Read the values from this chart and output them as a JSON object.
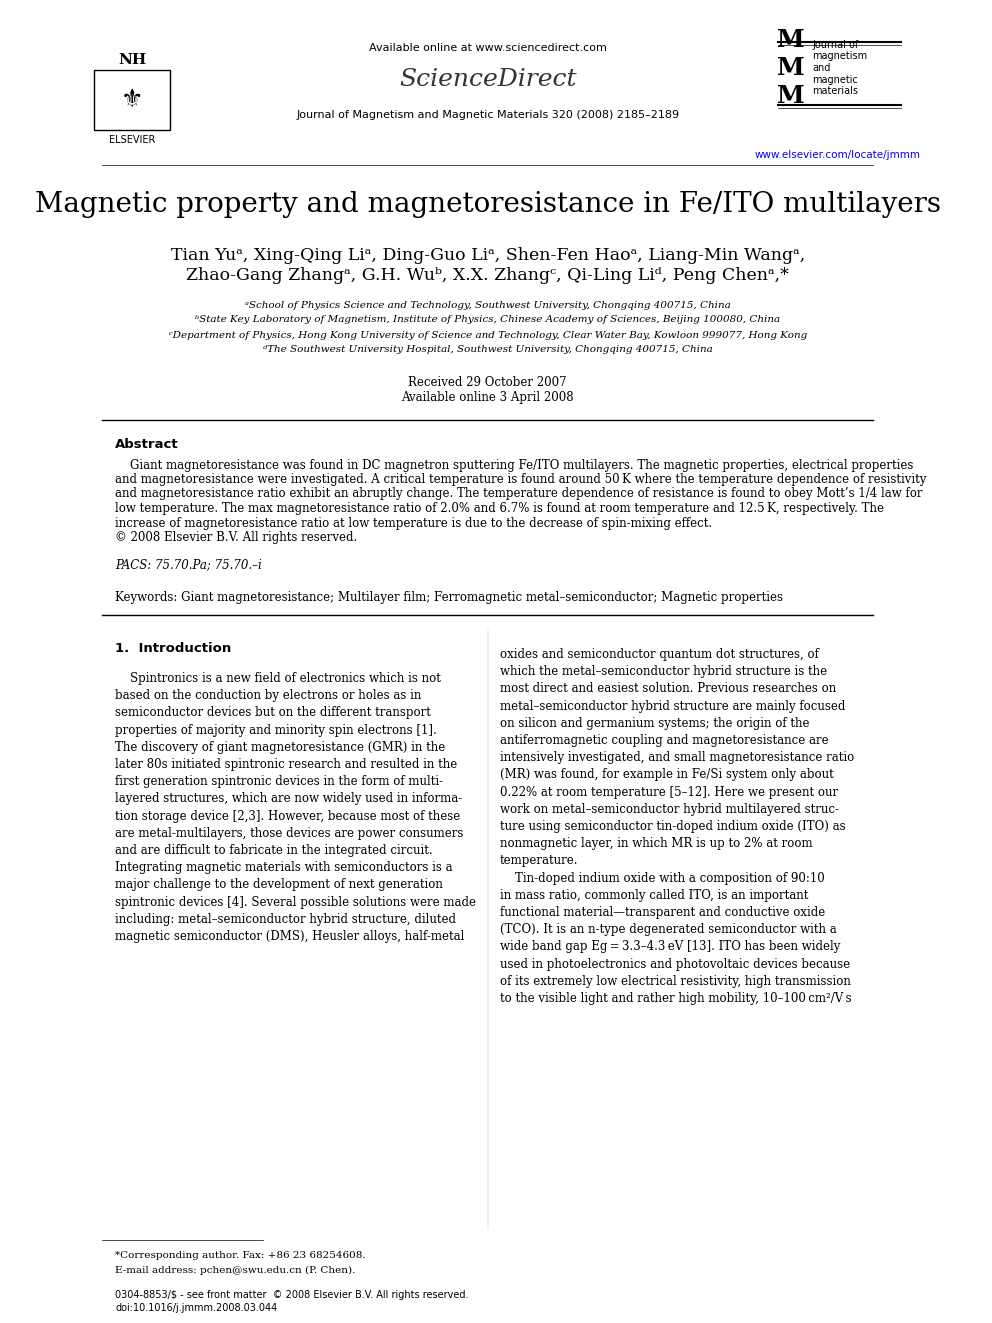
{
  "title": "Magnetic property and magnetoresistance in Fe/ITO multilayers",
  "authors_line1": "Tian Yuᵃ, Xing-Qing Liᵃ, Ding-Guo Liᵃ, Shen-Fen Haoᵃ, Liang-Min Wangᵃ,",
  "authors_line2": "Zhao-Gang Zhangᵃ, G.H. Wuᵇ, X.X. Zhangᶜ, Qi-Ling Liᵈ, Peng Chenᵃ,*",
  "affiliation_a": "ᵃSchool of Physics Science and Technology, Southwest University, Chongqing 400715, China",
  "affiliation_b": "ᵇState Key Laboratory of Magnetism, Institute of Physics, Chinese Academy of Sciences, Beijing 100080, China",
  "affiliation_c": "ᶜDepartment of Physics, Hong Kong University of Science and Technology, Clear Water Bay, Kowloon 999077, Hong Kong",
  "affiliation_d": "ᵈThe Southwest University Hospital, Southwest University, Chongqing 400715, China",
  "received": "Received 29 October 2007",
  "available": "Available online 3 April 2008",
  "journal_header": "Journal of Magnetism and Magnetic Materials 320 (2008) 2185–2189",
  "available_online": "Available online at www.sciencedirect.com",
  "website": "www.elsevier.com/locate/jmmm",
  "abstract_title": "Abstract",
  "abstract_text": "Giant magnetoresistance was found in DC magnetron sputtering Fe/ITO multilayers. The magnetic properties, electrical properties and magnetoresistance were investigated. A critical temperature is found around 50 K where the temperature dependence of resistivity and magnetoresistance ratio exhibit an abruptly change. The temperature dependence of resistance is found to obey Mott’s 1/4 law for low temperature. The max magnetoresistance ratio of 2.0% and 6.7% is found at room temperature and 12.5 K, respectively. The increase of magnetoresistance ratio at low temperature is due to the decrease of spin-mixing effect.\n© 2008 Elsevier B.V. All rights reserved.",
  "pacs": "PACS: 75.70.Pa; 75.70.–i",
  "keywords": "Keywords: Giant magnetoresistance; Multilayer film; Ferromagnetic metal–semiconductor; Magnetic properties",
  "section1_title": "1.  Introduction",
  "intro_col1": "    Spintronics is a new field of electronics which is not based on the conduction by electrons or holes as in semiconductor devices but on the different transport properties of majority and minority spin electrons [1]. The discovery of giant magnetoresistance (GMR) in the later 80s initiated spintronic research and resulted in the first generation spintronic devices in the form of multi-layered structures, which are now widely used in information storage device [2,3]. However, because most of these are metal-multilayers, those devices are power consumers and are difficult to fabricate in the integrated circuit. Integrating magnetic materials with semiconductors is a major challenge to the development of next generation spintronic devices [4]. Several possible solutions were made including: metal–semiconductor hybrid structure, diluted magnetic semiconductor (DMS), Heusler alloys, half-metal",
  "intro_col2": "oxides and semiconductor quantum dot structures, of which the metal–semiconductor hybrid structure is the most direct and easiest solution. Previous researches on metal–semiconductor hybrid structure are mainly focused on silicon and germanium systems; the origin of the antiferromagnetic coupling and magnetoresistance are intensively investigated, and small magnetoresistance ratio (MR) was found, for example in Fe/Si system only about 0.22% at room temperature [5–12]. Here we present our work on metal–semiconductor hybrid multilayered structure using semiconductor tin-doped indium oxide (ITO) as nonmagnetic layer, in which MR is up to 2% at room temperature.\n    Tin-doped indium oxide with a composition of 90:10 in mass ratio, commonly called ITO, is an important functional material—transparent and conductive oxide (TCO). It is an n-type degenerated semiconductor with a wide band gap Eg = 3.3–4.3 eV [13]. ITO has been widely used in photoelectronics and photovoltaic devices because of its extremely low electrical resistivity, high transmission to the visible light and rather high mobility, 10–100 cm²/V s",
  "footnote_corresponding": "*Corresponding author. Fax: +86 23 68254608.",
  "footnote_email": "E-mail address: pchen@swu.edu.cn (P. Chen).",
  "footnote_bottom": "0304-8853/$ - see front matter  © 2008 Elsevier B.V. All rights reserved.\ndoi:10.1016/j.jmmm.2008.03.044",
  "bg_color": "#ffffff",
  "text_color": "#000000",
  "link_color": "#0000ff"
}
